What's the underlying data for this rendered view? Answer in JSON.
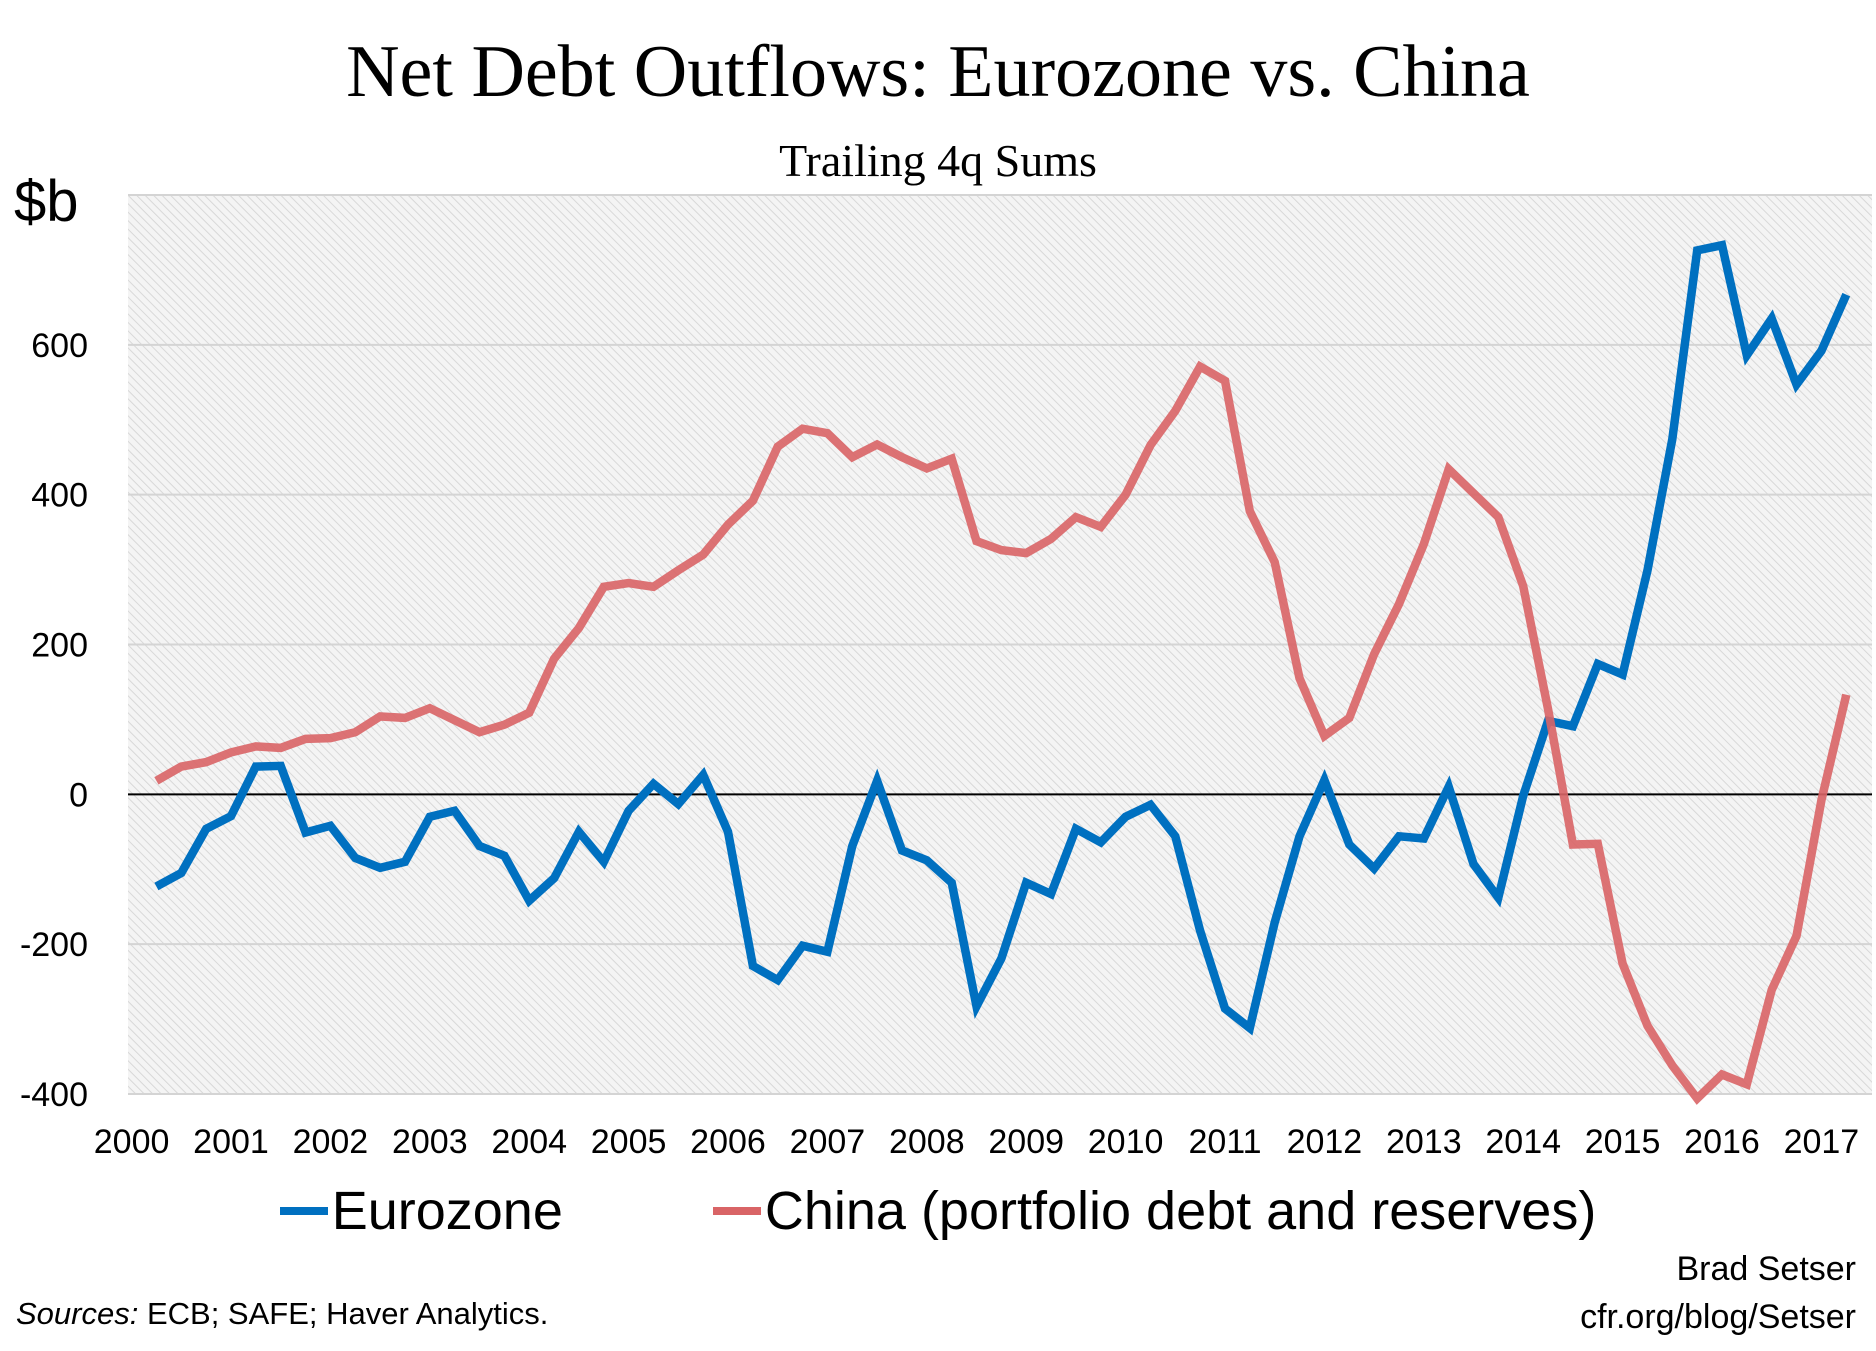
{
  "chart_data": {
    "type": "line",
    "title": "Net Debt Outflows: Eurozone vs. China",
    "subtitle": "Trailing 4q Sums",
    "ylabel": "$b",
    "xlabel": "",
    "ylim": [
      -400,
      800
    ],
    "yticks": [
      -400,
      -200,
      0,
      200,
      400,
      600
    ],
    "xticks": [
      "2000",
      "2001",
      "2002",
      "2003",
      "2004",
      "2005",
      "2006",
      "2007",
      "2008",
      "2009",
      "2010",
      "2011",
      "2012",
      "2013",
      "2014",
      "2015",
      "2016",
      "2017"
    ],
    "grid": true,
    "legend_placement": "bottom",
    "x_start": "2000Q1",
    "x_end": "2017Q1",
    "frequency": "quarterly",
    "series": [
      {
        "name": "Eurozone",
        "color": "#0070c0",
        "values": [
          -123,
          -105,
          -46,
          -29,
          37,
          38,
          -51,
          -42,
          -85,
          -98,
          -90,
          -30,
          -22,
          -69,
          -82,
          -142,
          -112,
          -50,
          -90,
          -22,
          14,
          -13,
          26,
          -50,
          -229,
          -248,
          -202,
          -210,
          -69,
          18,
          -75,
          -88,
          -118,
          -283,
          -219,
          -118,
          -133,
          -46,
          -64,
          -30,
          -14,
          -56,
          -182,
          -286,
          -312,
          -171,
          -56,
          19,
          -67,
          -99,
          -56,
          -59,
          10,
          -93,
          -138,
          -2,
          98,
          91,
          174,
          160,
          299,
          474,
          726,
          733,
          586,
          635,
          547,
          592,
          667
        ]
      },
      {
        "name": "China (portfolio debt and reserves)",
        "color": "#d96466",
        "values": [
          18,
          37,
          43,
          56,
          64,
          62,
          74,
          75,
          83,
          104,
          102,
          115,
          99,
          83,
          93,
          109,
          181,
          222,
          277,
          282,
          277,
          299,
          320,
          360,
          392,
          464,
          488,
          482,
          450,
          467,
          450,
          435,
          448,
          338,
          326,
          322,
          341,
          370,
          357,
          400,
          466,
          512,
          571,
          552,
          378,
          310,
          155,
          78,
          102,
          187,
          254,
          334,
          434,
          402,
          370,
          278,
          114,
          -67,
          -66,
          -226,
          -309,
          -362,
          -406,
          -374,
          -387,
          -261,
          -189,
          -8,
          133
        ]
      }
    ]
  },
  "footer": {
    "author": "Brad Setser",
    "site": "cfr.org/blog/Setser",
    "sources_label": "Sources:",
    "sources_text": " ECB; SAFE; Haver Analytics."
  }
}
